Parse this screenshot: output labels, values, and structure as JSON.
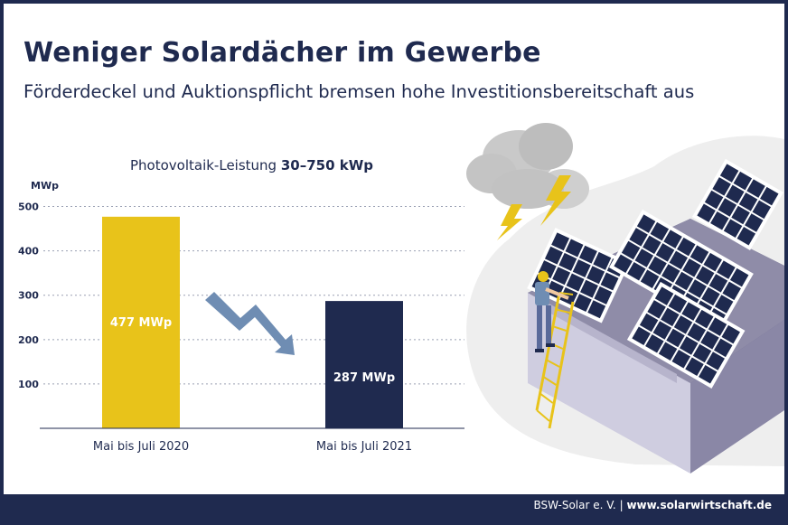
{
  "header": {
    "title": "Weniger Solardächer im Gewerbe",
    "subtitle": "Förderdeckel und Auktionspflicht bremsen hohe Investitionsbereitschaft aus"
  },
  "chart_data": {
    "type": "bar",
    "title_prefix": "Photovoltaik-Leistung ",
    "title_bold": "30–750 kWp",
    "ylabel": "MWp",
    "ylim": [
      0,
      550
    ],
    "yticks": [
      100,
      200,
      300,
      400,
      500
    ],
    "categories": [
      "Mai bis Juli 2020",
      "Mai bis Juli 2021"
    ],
    "values": [
      477,
      287
    ],
    "data_labels": [
      "477 MWp",
      "287 MWp"
    ],
    "bar_colors": [
      "#e8c31a",
      "#1f2a4f"
    ],
    "grid": true,
    "trend_arrow": "down"
  },
  "footer": {
    "org": "BSW-Solar e. V.",
    "separator": "|",
    "url": "www.solarwirtschaft.de"
  },
  "colors": {
    "navy": "#1f2a4f",
    "yellow": "#e8c31a",
    "arrow": "#6f8db3",
    "cloud": "#b8b8b8",
    "roof": "#8f8ca8"
  },
  "illustration": {
    "description_icons": [
      "storm-cloud-icon",
      "lightning-icon",
      "solar-roof-illustration",
      "worker-icon",
      "ladder-icon"
    ]
  }
}
